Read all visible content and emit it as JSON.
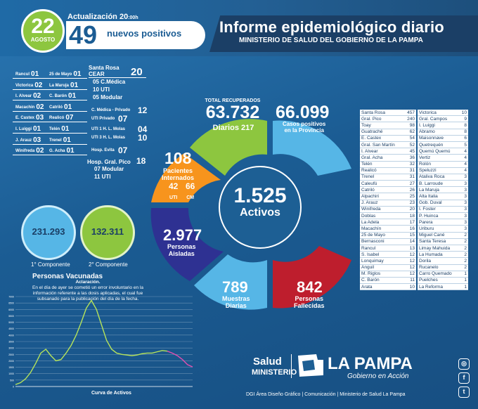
{
  "header": {
    "day": "22",
    "month": "AGOSTO",
    "update_label": "Actualización 20",
    "update_suffix": ":00h",
    "new_positives": "49",
    "new_positives_label": "nuevos positivos",
    "title": "Informe epidemiológico diario",
    "subtitle": "MINISTERIO DE SALUD DEL GOBIERNO DE LA PAMPA"
  },
  "locations_left": [
    {
      "name": "Rancul",
      "v": "01"
    },
    {
      "name": "Victorica",
      "v": "02"
    },
    {
      "name": "I. Alvear",
      "v": "02"
    },
    {
      "name": "Macachin",
      "v": "02"
    },
    {
      "name": "E. Castex",
      "v": "03"
    },
    {
      "name": "I. Luiggi",
      "v": "01"
    },
    {
      "name": "J. Arauz",
      "v": "03"
    },
    {
      "name": "Winifreda",
      "v": "02"
    }
  ],
  "locations_mid": [
    {
      "name": "25 de Mayo",
      "v": "01"
    },
    {
      "name": "La Maruja",
      "v": "01"
    },
    {
      "name": "C. Barón",
      "v": "01"
    },
    {
      "name": "Catriló",
      "v": "01"
    },
    {
      "name": "Realicó",
      "v": "07"
    },
    {
      "name": "Telén",
      "v": "01"
    },
    {
      "name": "Trenel",
      "v": "01"
    },
    {
      "name": "G. Acha",
      "v": "01"
    }
  ],
  "santa_rosa": {
    "name": "Santa Rosa",
    "sub": "CEAR",
    "v": "20",
    "c_medica": "05 C.Médica",
    "uti": "10 UTI",
    "modular": "05 Modular",
    "cmp_label": "C. Médica - Privado",
    "cmp": "12",
    "utip_label": "UTI Privado",
    "utip": "07",
    "uti1_label": "UTI 1 H. L. Molas",
    "uti1": "04",
    "uti3_label": "UTI 3 H. L. Molas",
    "uti3": "10",
    "evita_label": "Hosp. Evita",
    "evita": "07",
    "pico_label": "Hosp. Gral. Pico",
    "pico": "18",
    "pico_mod": "07 Modular",
    "pico_uti": "11 UTI"
  },
  "stats": {
    "recuperados_label": "TOTAL RECUPERADOS",
    "recuperados": "63.732",
    "diarios_label": "Diarios",
    "diarios": "217",
    "casos": "66.099",
    "casos_label1": "Casos positivos",
    "casos_label2": "en la Provincia",
    "internados": "108",
    "internados_l1": "Pacientes",
    "internados_l2": "Internados",
    "uti": "42",
    "uti_l": "UTI",
    "cm": "66",
    "cm_l": "CM",
    "activos": "1.525",
    "activos_l": "Activos",
    "aisladas": "2.977",
    "aisladas_l1": "Personas",
    "aisladas_l2": "Aisladas",
    "muestras": "789",
    "muestras_l1": "Muestras",
    "muestras_l2": "Diarias",
    "fallecidas": "842",
    "fallecidas_l1": "Personas",
    "fallecidas_l2": "Fallecidas"
  },
  "vaccines": {
    "first": "231.293",
    "first_l": "1° Componente",
    "second": "132.311",
    "second_l": "2° Componente",
    "label": "Personas Vacunadas",
    "note_title": "Aclaración.",
    "note": "En el día de ayer se cometió un error involuntario en la información referente a las dosis aplicadas, el cual fue subsanado para la publicación del día de la fecha."
  },
  "table_left": [
    [
      "Santa Rosa",
      "457"
    ],
    [
      "Gral. Pico",
      "240"
    ],
    [
      "Toay",
      "98"
    ],
    [
      "Guatraché",
      "62"
    ],
    [
      "E. Castex",
      "54"
    ],
    [
      "Gral. San Martín",
      "52"
    ],
    [
      "I. Alvear",
      "45"
    ],
    [
      "Gral. Acha",
      "36"
    ],
    [
      "Telén",
      "32"
    ],
    [
      "Realicó",
      "31"
    ],
    [
      "Trenel",
      "31"
    ],
    [
      "Caleufú",
      "27"
    ],
    [
      "Catriló",
      "26"
    ],
    [
      "Alpachiri",
      "25"
    ],
    [
      "J. Arauz",
      "23"
    ],
    [
      "Winifreda",
      "20"
    ],
    [
      "Doblas",
      "18"
    ],
    [
      "La Adela",
      "17"
    ],
    [
      "Macachín",
      "16"
    ],
    [
      "25 de Mayo",
      "15"
    ],
    [
      "Bernasconi",
      "14"
    ],
    [
      "Rancul",
      "13"
    ],
    [
      "S. Isabel",
      "12"
    ],
    [
      "Lonquimay",
      "12"
    ],
    [
      "Anguil",
      "12"
    ],
    [
      "M. Riglos",
      "12"
    ],
    [
      "C. Barón",
      "11"
    ],
    [
      "Arata",
      "10"
    ]
  ],
  "table_right": [
    [
      "Victorica",
      "10"
    ],
    [
      "Gral. Campos",
      "9"
    ],
    [
      "I. Luiggi",
      "8"
    ],
    [
      "Abramo",
      "8"
    ],
    [
      "Maisonnave",
      "6"
    ],
    [
      "Quetrequén",
      "5"
    ],
    [
      "Quemú Quemú",
      "4"
    ],
    [
      "Vertiz",
      "4"
    ],
    [
      "Rolón",
      "4"
    ],
    [
      "Speluzzi",
      "4"
    ],
    [
      "Ataliva Roca",
      "3"
    ],
    [
      "B. Larroude",
      "3"
    ],
    [
      "La Maruja",
      "3"
    ],
    [
      "Alta Italia",
      "3"
    ],
    [
      "Gob. Duval",
      "3"
    ],
    [
      "I. Foster",
      "3"
    ],
    [
      "P. Huinca",
      "3"
    ],
    [
      "Parera",
      "3"
    ],
    [
      "Uriburu",
      "3"
    ],
    [
      "Miguel Cané",
      "2"
    ],
    [
      "Santa Teresa",
      "2"
    ],
    [
      "Limay Mahuida",
      "2"
    ],
    [
      "La Humada",
      "2"
    ],
    [
      "Dorila",
      "2"
    ],
    [
      "Rucanelo",
      "2"
    ],
    [
      "Carro Quemado",
      "1"
    ],
    [
      "Puelches",
      "1"
    ],
    [
      "La Reforma",
      "1"
    ]
  ],
  "chart_data": {
    "type": "line",
    "title": "Curva de Activos",
    "y_ticks": [
      "7000",
      "6500",
      "6000",
      "5500",
      "5000",
      "4500",
      "4000",
      "3500",
      "3000",
      "2500",
      "2000",
      "1500",
      "1000",
      "500",
      "0"
    ],
    "ylim": [
      0,
      7000
    ],
    "series": [
      {
        "values": [
          150,
          300,
          600,
          1100,
          1800,
          2600,
          2900,
          2400,
          2000,
          2100,
          2600,
          3200,
          4000,
          5000,
          6100,
          6700,
          6000,
          4800,
          3600,
          2900,
          2600,
          2500,
          2450,
          2400,
          2450,
          2550,
          2600,
          2600,
          2700,
          2800,
          2750,
          2600,
          2400,
          2100,
          1700,
          1525
        ]
      }
    ]
  },
  "footer": {
    "salud": "Salud",
    "ministerio": "MINISTERIO",
    "la_pampa": "LA PAMPA",
    "gobierno": "Gobierno en Acción",
    "credits": "DGI Área Diseño Gráfico  |  Comunicación  |  Ministerio de Salud La Pampa"
  },
  "colors": {
    "green": "#8dc63f",
    "blue": "#56b6e6",
    "orange": "#f7941d",
    "navy": "#2e3192",
    "red": "#be1e2d"
  }
}
